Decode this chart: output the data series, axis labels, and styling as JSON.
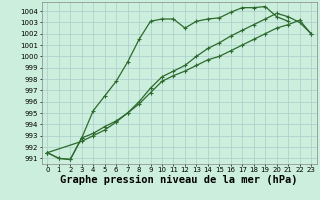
{
  "title": "Graphe pression niveau de la mer (hPa)",
  "background_color": "#cceedd",
  "line_color": "#2d6a2d",
  "grid_color": "#aacccc",
  "x": [
    0,
    1,
    2,
    3,
    4,
    5,
    6,
    7,
    8,
    9,
    10,
    11,
    12,
    13,
    14,
    15,
    16,
    17,
    18,
    19,
    20,
    21,
    22,
    23
  ],
  "line1": [
    991.5,
    991.0,
    990.9,
    992.8,
    995.2,
    996.5,
    997.8,
    999.5,
    1001.5,
    1003.1,
    1003.3,
    1003.3,
    1002.5,
    1003.1,
    1003.3,
    1003.4,
    1003.9,
    1004.3,
    1004.3,
    1004.4,
    1003.5,
    1003.1,
    null,
    null
  ],
  "line2": [
    991.5,
    991.0,
    990.9,
    992.8,
    993.2,
    993.8,
    994.3,
    995.0,
    995.8,
    996.8,
    997.8,
    998.3,
    998.7,
    999.2,
    999.7,
    1000.0,
    1000.5,
    1001.0,
    1001.5,
    1002.0,
    1002.5,
    1002.8,
    1003.2,
    1002.0
  ],
  "line3": [
    991.5,
    null,
    null,
    992.5,
    993.0,
    993.5,
    994.2,
    995.0,
    996.0,
    997.2,
    998.2,
    998.7,
    999.2,
    1000.0,
    1000.7,
    1001.2,
    1001.8,
    1002.3,
    1002.8,
    1003.3,
    1003.8,
    1003.5,
    1003.0,
    1002.0
  ],
  "ylim": [
    990.5,
    1004.8
  ],
  "yticks": [
    991,
    992,
    993,
    994,
    995,
    996,
    997,
    998,
    999,
    1000,
    1001,
    1002,
    1003,
    1004
  ],
  "xticks": [
    0,
    1,
    2,
    3,
    4,
    5,
    6,
    7,
    8,
    9,
    10,
    11,
    12,
    13,
    14,
    15,
    16,
    17,
    18,
    19,
    20,
    21,
    22,
    23
  ],
  "marker": "+",
  "marker_size": 3,
  "linewidth": 0.9,
  "title_fontsize": 7.5,
  "tick_fontsize": 5
}
